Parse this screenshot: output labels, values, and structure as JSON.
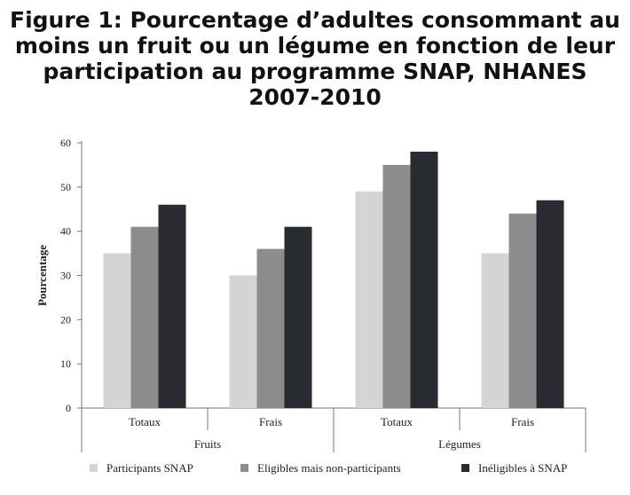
{
  "title": "Figure 1: Pourcentage d’adultes consommant au\nmoins un fruit ou un légume en fonction de leur\nparticipation au programme SNAP, NHANES\n2007-2010",
  "chart_data": {
    "type": "bar",
    "title": "Figure 1: Pourcentage d’adultes consommant au moins un fruit ou un légume en fonction de leur participation au programme SNAP, NHANES 2007-2010",
    "ylabel": "Pourcentage",
    "xlabel": "",
    "ylim": [
      0,
      60
    ],
    "yticks": [
      "0",
      "10",
      "20",
      "30",
      "40",
      "50",
      "60"
    ],
    "groups": [
      "Fruits",
      "Légumes"
    ],
    "categories": [
      "Totaux",
      "Frais",
      "Totaux",
      "Frais"
    ],
    "category_group": [
      "Fruits",
      "Fruits",
      "Légumes",
      "Légumes"
    ],
    "series": [
      {
        "name": "Participants SNAP",
        "color": "#d4d4d4",
        "values": [
          35,
          30,
          49,
          35
        ]
      },
      {
        "name": "Eligibles mais non-participants",
        "color": "#8c8c8c",
        "values": [
          41,
          36,
          55,
          44
        ]
      },
      {
        "name": "Inéligibles à SNAP",
        "color": "#2a2a33",
        "values": [
          46,
          41,
          58,
          47
        ]
      }
    ],
    "grid": false,
    "legend_position": "bottom"
  }
}
